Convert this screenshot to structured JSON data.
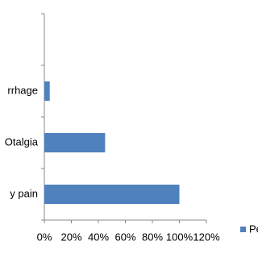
{
  "chart_data": {
    "type": "hbar",
    "categories": [
      null,
      "rrhage",
      "Otalgia",
      "y pain"
    ],
    "series": [
      {
        "name": "Pe",
        "color": "#4f81bd",
        "values": [
          0,
          4,
          45,
          100
        ]
      }
    ],
    "xlim": [
      0,
      120
    ],
    "xticks": [
      {
        "value": 0,
        "label": "0%"
      },
      {
        "value": 20,
        "label": "20%"
      },
      {
        "value": 40,
        "label": "40%"
      },
      {
        "value": 60,
        "label": "60%"
      },
      {
        "value": 80,
        "label": "80%"
      },
      {
        "value": 100,
        "label": "100%"
      },
      {
        "value": 120,
        "label": "120%"
      }
    ]
  }
}
